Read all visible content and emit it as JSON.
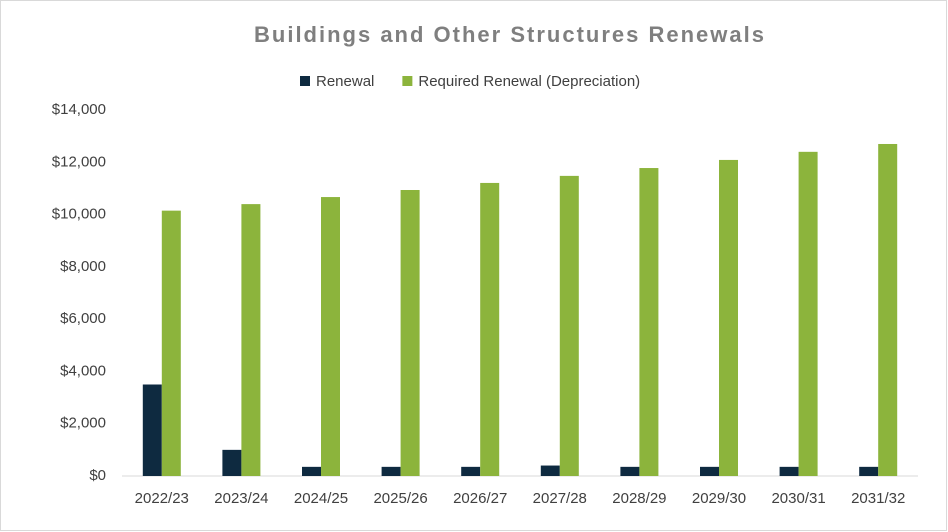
{
  "chart_data": {
    "type": "bar",
    "title": "Buildings and Other Structures Renewals",
    "categories": [
      "2022/23",
      "2023/24",
      "2024/25",
      "2025/26",
      "2026/27",
      "2027/28",
      "2028/29",
      "2029/30",
      "2030/31",
      "2031/32"
    ],
    "series": [
      {
        "name": "Renewal",
        "color": "#0e2a40",
        "values": [
          3500,
          1000,
          350,
          350,
          350,
          400,
          350,
          350,
          350,
          350
        ]
      },
      {
        "name": "Required Renewal (Depreciation)",
        "color": "#8cb43c",
        "values": [
          10150,
          10400,
          10670,
          10940,
          11210,
          11480,
          11780,
          12090,
          12400,
          12700
        ]
      }
    ],
    "ylim": [
      0,
      14000
    ],
    "yticks": [
      {
        "value": 0,
        "label": "$0"
      },
      {
        "value": 2000,
        "label": "$2,000"
      },
      {
        "value": 4000,
        "label": "$4,000"
      },
      {
        "value": 6000,
        "label": "$6,000"
      },
      {
        "value": 8000,
        "label": "$8,000"
      },
      {
        "value": 10000,
        "label": "$10,000"
      },
      {
        "value": 12000,
        "label": "$12,000"
      },
      {
        "value": 14000,
        "label": "$14,000"
      }
    ],
    "grid": false,
    "legend": "top"
  }
}
